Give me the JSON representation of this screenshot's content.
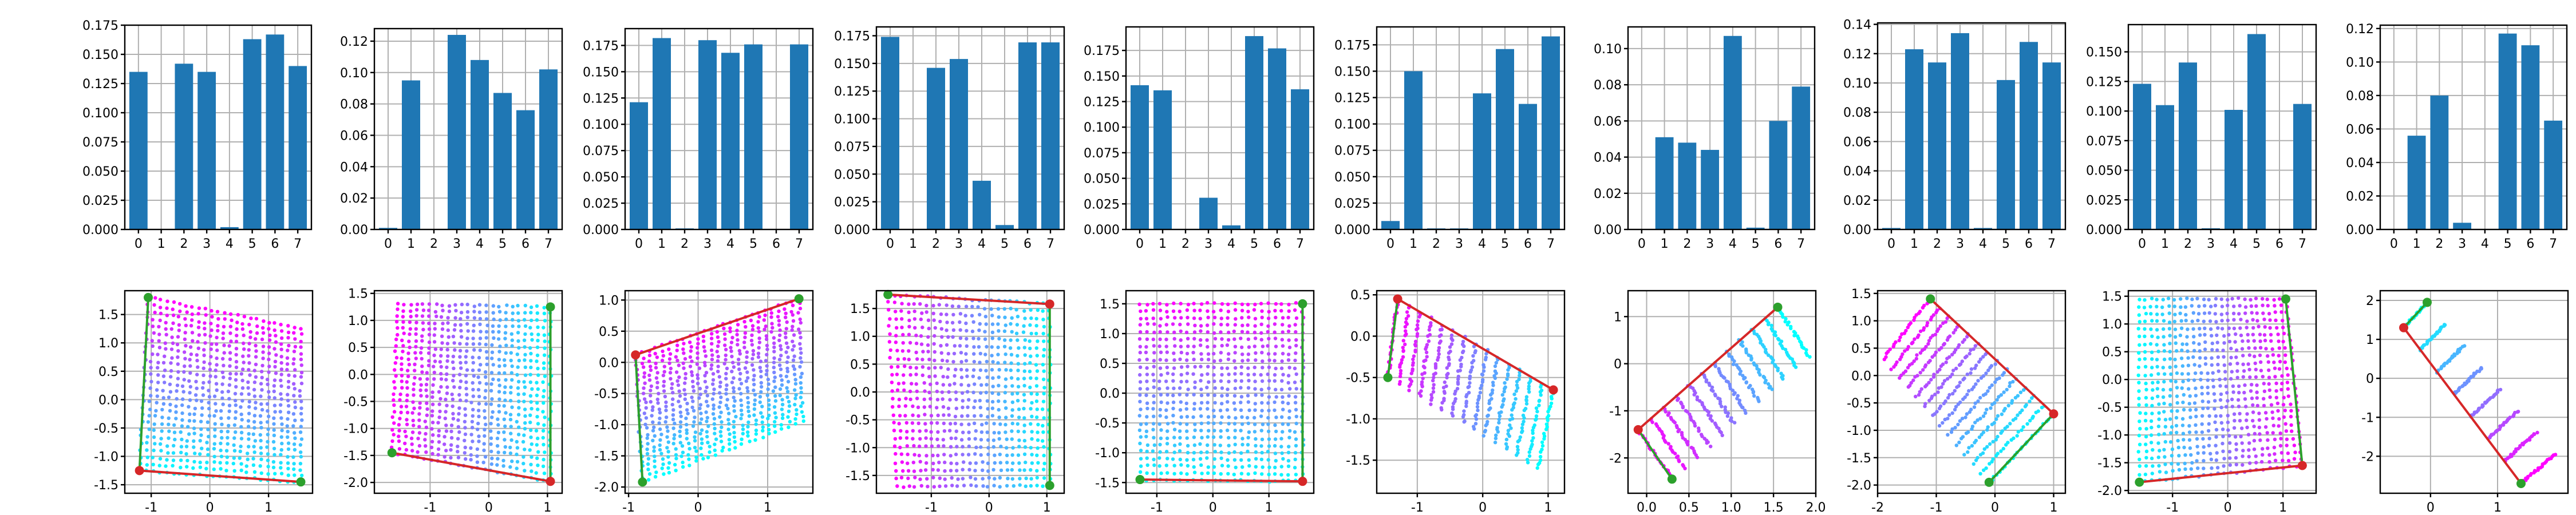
{
  "figure": {
    "background": "#ffffff"
  },
  "colors": {
    "bar": "#1f77b4",
    "grid": "#b0b0b0",
    "scatter_from": "#00ffff",
    "scatter_to": "#ff00ff",
    "edge_red": "#d62728",
    "edge_green": "#2ca02c",
    "corner_red": "#d62728",
    "corner_green": "#2ca02c"
  },
  "chart_data": [
    {
      "type": "bar",
      "panel": 1,
      "categories": [
        "0",
        "1",
        "2",
        "3",
        "4",
        "5",
        "6",
        "7"
      ],
      "values": [
        0.135,
        0,
        0.142,
        0.135,
        0.002,
        0.163,
        0.167,
        0.14
      ],
      "ylim": [
        0,
        0.175
      ],
      "yticks": [
        "0.000",
        "0.025",
        "0.050",
        "0.075",
        "0.100",
        "0.125",
        "0.150",
        "0.175"
      ],
      "grid": true
    },
    {
      "type": "bar",
      "panel": 2,
      "categories": [
        "0",
        "1",
        "2",
        "3",
        "4",
        "5",
        "6",
        "7"
      ],
      "values": [
        0.001,
        0.095,
        0,
        0.124,
        0.108,
        0.087,
        0.076,
        0.102
      ],
      "ylim": [
        0,
        0.128
      ],
      "yticks": [
        "0.00",
        "0.02",
        "0.04",
        "0.06",
        "0.08",
        "0.10",
        "0.12"
      ],
      "grid": true
    },
    {
      "type": "bar",
      "panel": 3,
      "categories": [
        "0",
        "1",
        "2",
        "3",
        "4",
        "5",
        "6",
        "7"
      ],
      "values": [
        0.121,
        0.182,
        0.001,
        0.18,
        0.168,
        0.176,
        0,
        0.176
      ],
      "ylim": [
        0,
        0.191
      ],
      "yticks": [
        "0.000",
        "0.025",
        "0.050",
        "0.075",
        "0.100",
        "0.125",
        "0.150",
        "0.175"
      ],
      "grid": true
    },
    {
      "type": "bar",
      "panel": 4,
      "categories": [
        "0",
        "1",
        "2",
        "3",
        "4",
        "5",
        "6",
        "7"
      ],
      "values": [
        0.174,
        0,
        0.146,
        0.154,
        0.044,
        0.004,
        0.169,
        0.169
      ],
      "ylim": [
        0,
        0.183
      ],
      "yticks": [
        "0.000",
        "0.025",
        "0.050",
        "0.075",
        "0.100",
        "0.125",
        "0.150",
        "0.175"
      ],
      "grid": true
    },
    {
      "type": "bar",
      "panel": 5,
      "categories": [
        "0",
        "1",
        "2",
        "3",
        "4",
        "5",
        "6",
        "7"
      ],
      "values": [
        0.141,
        0.136,
        0,
        0.031,
        0.004,
        0.189,
        0.177,
        0.137
      ],
      "ylim": [
        0,
        0.198
      ],
      "yticks": [
        "0.000",
        "0.025",
        "0.050",
        "0.075",
        "0.100",
        "0.125",
        "0.150",
        "0.175"
      ],
      "grid": true
    },
    {
      "type": "bar",
      "panel": 6,
      "categories": [
        "0",
        "1",
        "2",
        "3",
        "4",
        "5",
        "6",
        "7"
      ],
      "values": [
        0.008,
        0.15,
        0.001,
        0.001,
        0.129,
        0.171,
        0.119,
        0.183
      ],
      "ylim": [
        0,
        0.192
      ],
      "yticks": [
        "0.000",
        "0.025",
        "0.050",
        "0.075",
        "0.100",
        "0.125",
        "0.150",
        "0.175"
      ],
      "grid": true
    },
    {
      "type": "bar",
      "panel": 7,
      "categories": [
        "0",
        "1",
        "2",
        "3",
        "4",
        "5",
        "6",
        "7"
      ],
      "values": [
        0,
        0.051,
        0.048,
        0.044,
        0.107,
        0.001,
        0.06,
        0.079
      ],
      "ylim": [
        0,
        0.112
      ],
      "yticks": [
        "0.00",
        "0.02",
        "0.04",
        "0.06",
        "0.08",
        "0.10"
      ],
      "grid": true
    },
    {
      "type": "bar",
      "panel": 8,
      "categories": [
        "0",
        "1",
        "2",
        "3",
        "4",
        "5",
        "6",
        "7"
      ],
      "values": [
        0.001,
        0.123,
        0.114,
        0.134,
        0.001,
        0.102,
        0.128,
        0.114
      ],
      "ylim": [
        0,
        0.141
      ],
      "yticks": [
        "0.00",
        "0.02",
        "0.04",
        "0.06",
        "0.08",
        "0.10",
        "0.12",
        "0.14"
      ],
      "grid": true
    },
    {
      "type": "bar",
      "panel": 9,
      "categories": [
        "0",
        "1",
        "2",
        "3",
        "4",
        "5",
        "6",
        "7"
      ],
      "values": [
        0.123,
        0.105,
        0.141,
        0.001,
        0.101,
        0.165,
        0,
        0.106
      ],
      "ylim": [
        0,
        0.173
      ],
      "yticks": [
        "0.000",
        "0.025",
        "0.050",
        "0.075",
        "0.100",
        "0.125",
        "0.150"
      ],
      "grid": true
    },
    {
      "type": "bar",
      "panel": 10,
      "categories": [
        "0",
        "1",
        "2",
        "3",
        "4",
        "5",
        "6",
        "7"
      ],
      "values": [
        0,
        0.056,
        0.08,
        0.004,
        0,
        0.117,
        0.11,
        0.065
      ],
      "ylim": [
        0,
        0.122
      ],
      "yticks": [
        "0.00",
        "0.02",
        "0.04",
        "0.06",
        "0.08",
        "0.10",
        "0.12"
      ],
      "grid": true
    },
    {
      "type": "scatter",
      "panel": 11,
      "xlim": [
        -1.45,
        1.75
      ],
      "ylim": [
        -1.65,
        1.92
      ],
      "xticks": [
        "-1",
        "0",
        "1"
      ],
      "yticks": [
        "-1.5",
        "-1.0",
        "-0.5",
        "0.0",
        "0.5",
        "1.0",
        "1.5"
      ],
      "grid": true,
      "corners": [
        [
          -1.2,
          -1.25
        ],
        [
          -1.05,
          1.8
        ],
        [
          1.55,
          -1.45
        ],
        [
          1.55,
          1.25
        ]
      ],
      "red_edge": [
        [
          -1.2,
          -1.25
        ],
        [
          1.55,
          -1.45
        ]
      ],
      "green_edge": [
        [
          -1.05,
          1.8
        ],
        [
          -1.2,
          -1.25
        ]
      ],
      "red_points": [
        [
          -1.2,
          -1.25
        ]
      ],
      "green_points": [
        [
          -1.05,
          1.8
        ],
        [
          1.55,
          -1.45
        ]
      ],
      "mag_side": "top",
      "rows": 25,
      "cols": 26
    },
    {
      "type": "scatter",
      "panel": 12,
      "xlim": [
        -1.95,
        1.25
      ],
      "ylim": [
        -2.2,
        1.55
      ],
      "xticks": [
        "-1",
        "0",
        "1"
      ],
      "yticks": [
        "-2.0",
        "-1.5",
        "-1.0",
        "-0.5",
        "0.0",
        "0.5",
        "1.0",
        "1.5"
      ],
      "grid": true,
      "corners": [
        [
          -1.65,
          -1.45
        ],
        [
          -1.55,
          1.3
        ],
        [
          1.05,
          -1.98
        ],
        [
          1.05,
          1.25
        ]
      ],
      "red_edge": [
        [
          -1.65,
          -1.45
        ],
        [
          1.05,
          -1.98
        ]
      ],
      "green_edge": [
        [
          1.05,
          1.25
        ],
        [
          1.05,
          -1.98
        ]
      ],
      "red_points": [
        [
          1.05,
          -1.98
        ]
      ],
      "green_points": [
        [
          -1.65,
          -1.45
        ],
        [
          1.05,
          1.25
        ]
      ],
      "mag_side": "left",
      "rows": 25,
      "cols": 26
    },
    {
      "type": "scatter",
      "panel": 13,
      "xlim": [
        -1.05,
        1.65
      ],
      "ylim": [
        -2.1,
        1.15
      ],
      "xticks": [
        "-1",
        "0",
        "1"
      ],
      "yticks": [
        "-2.0",
        "-1.5",
        "-1.0",
        "-0.5",
        "0.0",
        "0.5",
        "1.0"
      ],
      "grid": true,
      "corners": [
        [
          -0.9,
          0.12
        ],
        [
          -0.8,
          -1.92
        ],
        [
          1.45,
          1.02
        ],
        [
          1.5,
          -0.95
        ]
      ],
      "red_edge": [
        [
          -0.9,
          0.12
        ],
        [
          1.45,
          1.02
        ]
      ],
      "green_edge": [
        [
          -0.9,
          0.12
        ],
        [
          -0.8,
          -1.92
        ]
      ],
      "red_points": [
        [
          -0.9,
          0.12
        ]
      ],
      "green_points": [
        [
          1.45,
          1.02
        ],
        [
          -0.8,
          -1.92
        ]
      ],
      "mag_side": "bottom",
      "rows": 25,
      "cols": 26
    },
    {
      "type": "scatter",
      "panel": 14,
      "xlim": [
        -1.95,
        1.3
      ],
      "ylim": [
        -1.82,
        1.82
      ],
      "xticks": [
        "-1",
        "0",
        "1"
      ],
      "yticks": [
        "-1.5",
        "-1.0",
        "-0.5",
        "0.0",
        "0.5",
        "1.0",
        "1.5"
      ],
      "grid": true,
      "corners": [
        [
          -1.75,
          1.75
        ],
        [
          1.05,
          1.58
        ],
        [
          -1.6,
          -1.7
        ],
        [
          1.05,
          -1.68
        ]
      ],
      "red_edge": [
        [
          -1.75,
          1.75
        ],
        [
          1.05,
          1.58
        ]
      ],
      "green_edge": [
        [
          1.05,
          1.58
        ],
        [
          1.05,
          -1.68
        ]
      ],
      "red_points": [
        [
          1.05,
          1.58
        ]
      ],
      "green_points": [
        [
          -1.75,
          1.75
        ],
        [
          1.05,
          -1.68
        ]
      ],
      "mag_side": "bottom",
      "rows": 25,
      "cols": 26
    },
    {
      "type": "scatter",
      "panel": 15,
      "xlim": [
        -1.55,
        1.8
      ],
      "ylim": [
        -1.68,
        1.72
      ],
      "xticks": [
        "-1",
        "0",
        "1"
      ],
      "yticks": [
        "-1.5",
        "-1.0",
        "-0.5",
        "0.0",
        "0.5",
        "1.0",
        "1.5"
      ],
      "grid": true,
      "corners": [
        [
          -1.3,
          -1.45
        ],
        [
          -1.3,
          1.5
        ],
        [
          1.6,
          -1.48
        ],
        [
          1.6,
          1.5
        ]
      ],
      "red_edge": [
        [
          -1.3,
          -1.45
        ],
        [
          1.6,
          -1.48
        ]
      ],
      "green_edge": [
        [
          1.6,
          1.5
        ],
        [
          1.6,
          -1.48
        ]
      ],
      "red_points": [
        [
          1.6,
          -1.48
        ]
      ],
      "green_points": [
        [
          -1.3,
          -1.45
        ],
        [
          1.6,
          1.5
        ]
      ],
      "mag_side": "top",
      "rows": 25,
      "cols": 26
    },
    {
      "type": "scatter",
      "panel": 16,
      "xlim": [
        -1.62,
        1.25
      ],
      "ylim": [
        -1.9,
        0.55
      ],
      "xticks": [
        "-1",
        "0",
        "1"
      ],
      "yticks": [
        "-1.5",
        "-1.0",
        "-0.5",
        "0.0",
        "0.5"
      ],
      "grid": true,
      "corners": [
        [
          -1.3,
          0.45
        ],
        [
          -1.45,
          -0.5
        ],
        [
          1.08,
          -0.65
        ],
        [
          0.85,
          -1.6
        ]
      ],
      "red_edge": [
        [
          -1.3,
          0.45
        ],
        [
          1.08,
          -0.65
        ]
      ],
      "green_edge": [
        [
          -1.3,
          0.45
        ],
        [
          -1.45,
          -0.5
        ]
      ],
      "red_points": [
        [
          -1.3,
          0.45
        ],
        [
          1.08,
          -0.65
        ]
      ],
      "green_points": [
        [
          -1.45,
          -0.5
        ]
      ],
      "mag_side": "left",
      "rows": 15,
      "cols": 26
    },
    {
      "type": "scatter",
      "panel": 17,
      "xlim": [
        -0.22,
        2.0
      ],
      "ylim": [
        -2.75,
        1.55
      ],
      "xticks": [
        "0.0",
        "0.5",
        "1.0",
        "1.5",
        "2.0"
      ],
      "yticks": [
        "-2",
        "-1",
        "0",
        "1"
      ],
      "grid": true,
      "corners": [
        [
          -0.1,
          -1.4
        ],
        [
          0.3,
          -2.45
        ],
        [
          1.55,
          1.2
        ],
        [
          1.92,
          0.15
        ]
      ],
      "red_edge": [
        [
          -0.1,
          -1.4
        ],
        [
          1.55,
          1.2
        ]
      ],
      "green_edge": [
        [
          -0.1,
          -1.4
        ],
        [
          0.3,
          -2.45
        ]
      ],
      "red_points": [
        [
          -0.1,
          -1.4
        ]
      ],
      "green_points": [
        [
          0.3,
          -2.45
        ],
        [
          1.55,
          1.2
        ]
      ],
      "mag_side": "left",
      "rows": 12,
      "cols": 26
    },
    {
      "type": "scatter",
      "panel": 18,
      "xlim": [
        -2.0,
        1.2
      ],
      "ylim": [
        -2.15,
        1.55
      ],
      "xticks": [
        "-2",
        "-1",
        "0",
        "1"
      ],
      "yticks": [
        "-2.0",
        "-1.5",
        "-1.0",
        "-0.5",
        "0.0",
        "0.5",
        "1.0",
        "1.5"
      ],
      "grid": true,
      "corners": [
        [
          -1.1,
          1.4
        ],
        [
          -1.9,
          0.3
        ],
        [
          1.0,
          -0.7
        ],
        [
          -0.1,
          -1.95
        ]
      ],
      "red_edge": [
        [
          -1.1,
          1.4
        ],
        [
          1.0,
          -0.7
        ]
      ],
      "green_edge": [
        [
          1.0,
          -0.7
        ],
        [
          -0.1,
          -1.95
        ]
      ],
      "red_points": [
        [
          1.0,
          -0.7
        ]
      ],
      "green_points": [
        [
          -1.1,
          1.4
        ],
        [
          -0.1,
          -1.95
        ]
      ],
      "mag_side": "left",
      "rows": 14,
      "cols": 26
    },
    {
      "type": "scatter",
      "panel": 19,
      "xlim": [
        -1.8,
        1.6
      ],
      "ylim": [
        -2.05,
        1.6
      ],
      "xticks": [
        "-1",
        "0",
        "1"
      ],
      "yticks": [
        "-2.0",
        "-1.5",
        "-1.0",
        "-0.5",
        "0.0",
        "0.5",
        "1.0",
        "1.5"
      ],
      "grid": true,
      "corners": [
        [
          -1.6,
          1.45
        ],
        [
          1.05,
          1.45
        ],
        [
          -1.6,
          -1.85
        ],
        [
          1.35,
          -1.55
        ]
      ],
      "red_edge": [
        [
          -1.6,
          -1.85
        ],
        [
          1.35,
          -1.55
        ]
      ],
      "green_edge": [
        [
          1.05,
          1.45
        ],
        [
          1.35,
          -1.55
        ]
      ],
      "red_points": [
        [
          1.35,
          -1.55
        ]
      ],
      "green_points": [
        [
          -1.6,
          -1.85
        ],
        [
          1.05,
          1.45
        ]
      ],
      "mag_side": "top",
      "rows": 25,
      "cols": 26
    },
    {
      "type": "scatter",
      "panel": 20,
      "xlim": [
        -0.75,
        2.05
      ],
      "ylim": [
        -2.95,
        2.25
      ],
      "xticks": [
        "0",
        "1"
      ],
      "yticks": [
        "-2",
        "-1",
        "0",
        "1",
        "2"
      ],
      "grid": true,
      "corners": [
        [
          -0.4,
          1.3
        ],
        [
          -0.05,
          1.95
        ],
        [
          1.35,
          -2.7
        ],
        [
          1.85,
          -1.95
        ]
      ],
      "red_edge": [
        [
          -0.4,
          1.3
        ],
        [
          1.35,
          -2.7
        ]
      ],
      "green_edge": [
        [
          -0.4,
          1.3
        ],
        [
          -0.05,
          1.95
        ]
      ],
      "red_points": [
        [
          -0.4,
          1.3
        ]
      ],
      "green_points": [
        [
          -0.05,
          1.95
        ],
        [
          1.35,
          -2.7
        ]
      ],
      "mag_side": "right",
      "rows": 8,
      "cols": 26
    }
  ]
}
